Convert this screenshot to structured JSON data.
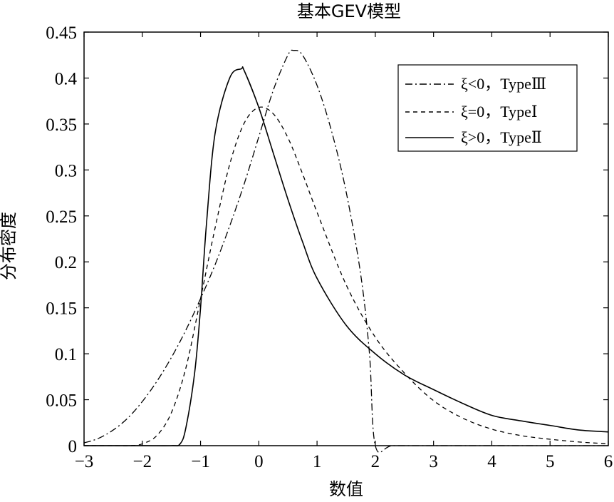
{
  "chart_data": {
    "type": "line",
    "title": "基本GEV模型",
    "xlabel": "数值",
    "ylabel": "分布密度",
    "xlim": [
      -3,
      6
    ],
    "ylim": [
      0,
      0.45
    ],
    "xticks": [
      -3,
      -2,
      -1,
      0,
      1,
      2,
      3,
      4,
      5,
      6
    ],
    "xtick_labels": [
      "−3",
      "−2",
      "−1",
      "0",
      "1",
      "2",
      "3",
      "4",
      "5",
      "6"
    ],
    "yticks": [
      0,
      0.05,
      0.1,
      0.15,
      0.2,
      0.25,
      0.3,
      0.35,
      0.4,
      0.45
    ],
    "ytick_labels": [
      "0",
      "0.05",
      "0.1",
      "0.15",
      "0.2",
      "0.25",
      "0.3",
      "0.35",
      "0.4",
      "0.45"
    ],
    "grid": false,
    "legend_position": "top-right",
    "series": [
      {
        "name": "ξ<0，TypeⅢ",
        "linestyle": "dashdot",
        "color": "#000000",
        "x": [
          -3,
          -2.75,
          -2.5,
          -2.25,
          -2,
          -1.75,
          -1.5,
          -1.25,
          -1,
          -0.75,
          -0.5,
          -0.25,
          0,
          0.25,
          0.5,
          0.6,
          0.75,
          1,
          1.25,
          1.5,
          1.75,
          1.9,
          2,
          2.3,
          3,
          4,
          5,
          6
        ],
        "y": [
          0.003,
          0.008,
          0.017,
          0.03,
          0.048,
          0.07,
          0.096,
          0.126,
          0.16,
          0.197,
          0.239,
          0.285,
          0.336,
          0.387,
          0.425,
          0.43,
          0.425,
          0.392,
          0.342,
          0.276,
          0.186,
          0.1,
          0.0,
          0.0,
          0.0,
          0.0,
          0.0,
          0.0
        ]
      },
      {
        "name": "ξ=0，TypeⅠ",
        "linestyle": "dashed",
        "color": "#000000",
        "x": [
          -3,
          -2.5,
          -2.2,
          -2,
          -1.75,
          -1.5,
          -1.25,
          -1,
          -0.75,
          -0.5,
          -0.25,
          0,
          0.25,
          0.5,
          0.75,
          1,
          1.5,
          2,
          2.5,
          3,
          3.5,
          4,
          4.5,
          5,
          5.5,
          6
        ],
        "y": [
          0.0,
          0.0,
          0.0,
          0.002,
          0.011,
          0.036,
          0.085,
          0.16,
          0.237,
          0.306,
          0.351,
          0.368,
          0.361,
          0.335,
          0.296,
          0.254,
          0.175,
          0.118,
          0.079,
          0.049,
          0.03,
          0.018,
          0.011,
          0.007,
          0.004,
          0.002
        ]
      },
      {
        "name": "ξ>0，TypeⅡ",
        "linestyle": "solid",
        "color": "#000000",
        "x": [
          -3,
          -2,
          -1.5,
          -1.35,
          -1.25,
          -1.1,
          -1,
          -0.9,
          -0.75,
          -0.5,
          -0.3,
          -0.25,
          0,
          0.25,
          0.5,
          0.75,
          1,
          1.5,
          2,
          2.5,
          3,
          3.5,
          4,
          4.5,
          5,
          5.5,
          6
        ],
        "y": [
          0.0,
          0.0,
          0.0,
          0.002,
          0.02,
          0.08,
          0.15,
          0.24,
          0.34,
          0.4,
          0.41,
          0.408,
          0.368,
          0.318,
          0.268,
          0.222,
          0.182,
          0.131,
          0.1,
          0.077,
          0.061,
          0.046,
          0.033,
          0.027,
          0.022,
          0.017,
          0.015
        ]
      }
    ]
  }
}
